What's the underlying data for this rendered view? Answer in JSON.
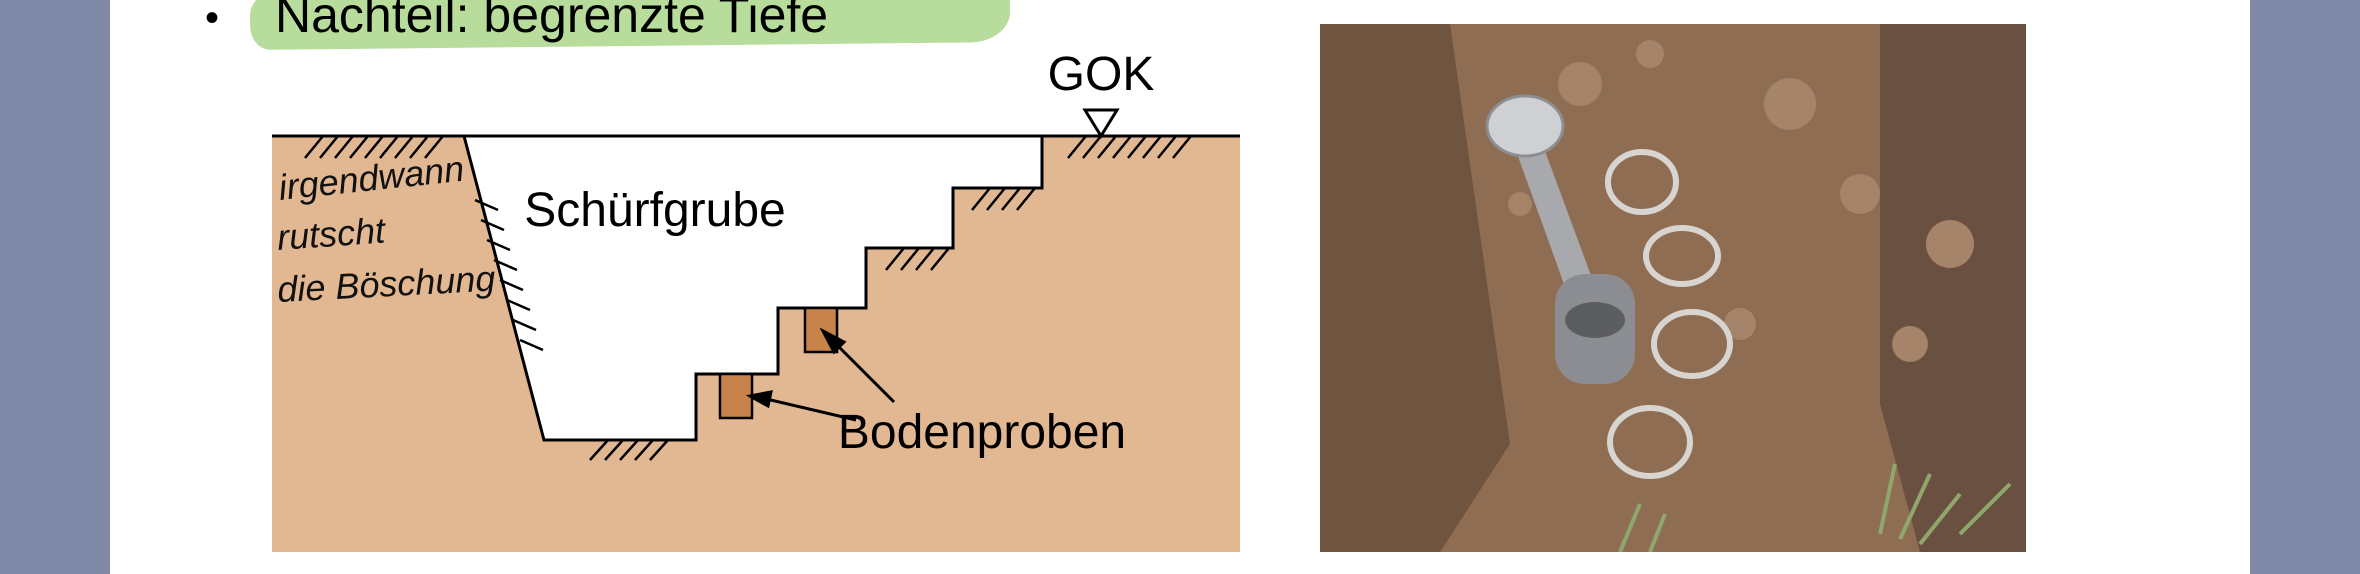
{
  "slide": {
    "bullet": "Nachteil: begrenzte Tiefe",
    "bullet_symbol": "•",
    "highlight_color": "#b7dc9b"
  },
  "diagram": {
    "gok_label": "GOK",
    "pit_label": "Schürfgrube",
    "samples_label": "Bodenproben",
    "handwritten_note": [
      "irgendwann",
      "rutscht",
      "die Böschung"
    ],
    "soil_color": "#e2b892",
    "sample_color": "#c8834a"
  },
  "photo": {
    "icon": "soil-sampling-photo",
    "soil_color": "#8a6a4f"
  }
}
